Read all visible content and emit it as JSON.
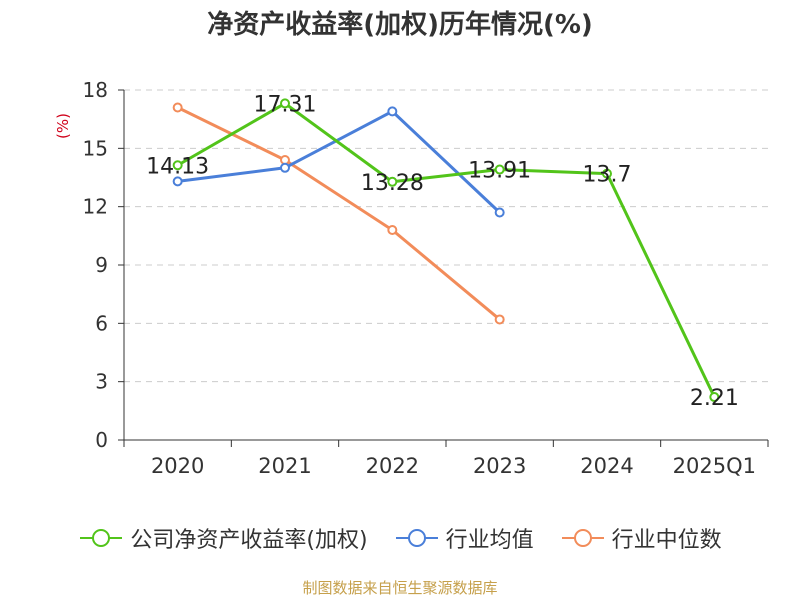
{
  "chart_data": {
    "type": "line",
    "title": "净资产收益率(加权)历年情况(%)",
    "ylabel": "(%)",
    "xlabel": "",
    "categories": [
      "2020",
      "2021",
      "2022",
      "2023",
      "2024",
      "2025Q1"
    ],
    "ylim": [
      0,
      18
    ],
    "yticks": [
      0,
      3,
      6,
      9,
      12,
      15,
      18
    ],
    "grid": true,
    "legend_position": "bottom",
    "series": [
      {
        "name": "公司净资产收益率(加权)",
        "color": "#52c41a",
        "values": [
          14.13,
          17.31,
          13.28,
          13.91,
          13.7,
          2.21
        ],
        "labels": [
          "14.13",
          "17.31",
          "13.28",
          "13.91",
          "13.7",
          "2.21"
        ]
      },
      {
        "name": "行业均值",
        "color": "#4a7fd9",
        "values": [
          13.3,
          14.0,
          16.9,
          11.7,
          null,
          null
        ]
      },
      {
        "name": "行业中位数",
        "color": "#f28c5a",
        "values": [
          17.1,
          14.4,
          10.8,
          6.2,
          null,
          null
        ]
      }
    ]
  },
  "source": "制图数据来自恒生聚源数据库",
  "colors": {
    "axis": "#333333",
    "grid": "#cccccc",
    "ylabel": "#d0021b",
    "source": "#c6a04b"
  }
}
